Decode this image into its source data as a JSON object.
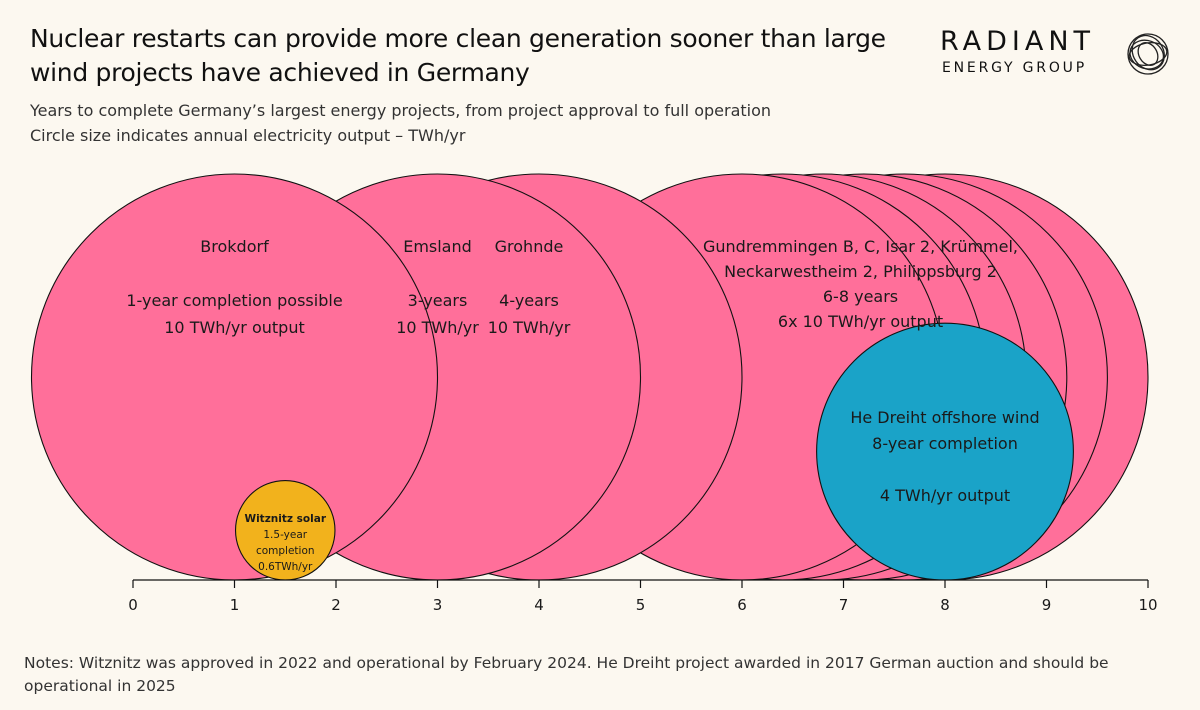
{
  "title_lines": [
    "Nuclear restarts can provide more clean generation sooner than large",
    "wind projects have achieved in Germany"
  ],
  "subtitle_lines": [
    "Years to complete Germany’s largest energy projects, from project approval to full operation",
    "Circle size indicates annual electricity output – TWh/yr"
  ],
  "logo": {
    "word": "RADIANT",
    "sub": "ENERGY GROUP",
    "icon": "radiant-swirl-logo"
  },
  "notes": "Notes: Witznitz was approved in 2022 and operational by February 2024. He Dreiht project awarded in 2017 German auction and should be operational in 2025",
  "colors": {
    "nuclear": "#ff6f9a",
    "solar": "#f2b21c",
    "wind": "#1aa3c8",
    "background": "#fcf8f0"
  },
  "chart_data": {
    "type": "bubble",
    "xlim": [
      0,
      10
    ],
    "x_ticks": [
      "0",
      "1",
      "2",
      "3",
      "4",
      "5",
      "6",
      "7",
      "8",
      "9",
      "10"
    ],
    "size_metric": "TWh/yr",
    "bubbles": [
      {
        "id": "brokdorf",
        "x": 1,
        "twh": 10,
        "kind": "nuclear",
        "label_lines": [
          "Brokdorf",
          "",
          "1-year completion possible",
          "10 TWh/yr output"
        ]
      },
      {
        "id": "emsland",
        "x": 3,
        "twh": 10,
        "kind": "nuclear",
        "label_lines": [
          "Emsland",
          "",
          "3-years",
          "10 TWh/yr"
        ]
      },
      {
        "id": "grohnde",
        "x": 4,
        "twh": 10,
        "kind": "nuclear",
        "label_lines": [
          "Grohnde",
          "",
          "4-years",
          "10 TWh/yr"
        ]
      },
      {
        "id": "gundremmingen-b",
        "x": 6,
        "twh": 10,
        "kind": "nuclear",
        "label_lines": []
      },
      {
        "id": "gundremmingen-c",
        "x": 6.4,
        "twh": 10,
        "kind": "nuclear",
        "label_lines": []
      },
      {
        "id": "isar-2",
        "x": 6.8,
        "twh": 10,
        "kind": "nuclear",
        "label_lines": []
      },
      {
        "id": "kruemmel",
        "x": 7.2,
        "twh": 10,
        "kind": "nuclear",
        "label_lines": []
      },
      {
        "id": "neckarwestheim-2",
        "x": 7.6,
        "twh": 10,
        "kind": "nuclear",
        "label_lines": []
      },
      {
        "id": "philippsburg-2",
        "x": 8,
        "twh": 10,
        "kind": "nuclear",
        "label_lines": []
      },
      {
        "id": "he-dreiht",
        "x": 8,
        "twh": 4,
        "kind": "wind",
        "label_lines": [
          "He Dreiht offshore wind",
          "8-year completion",
          "",
          "4 TWh/yr output"
        ]
      },
      {
        "id": "witznitz",
        "x": 1.5,
        "twh": 0.6,
        "kind": "solar",
        "label_lines": [
          "Witznitz solar",
          "1.5-year",
          "completion",
          "0.6TWh/yr"
        ]
      }
    ],
    "group_label": {
      "x": 7,
      "lines": [
        "Gundremmingen B, C, Isar 2, Krümmel,",
        "Neckarwestheim 2, Philippsburg 2",
        "6-8 years",
        "6x 10 TWh/yr output"
      ]
    }
  }
}
